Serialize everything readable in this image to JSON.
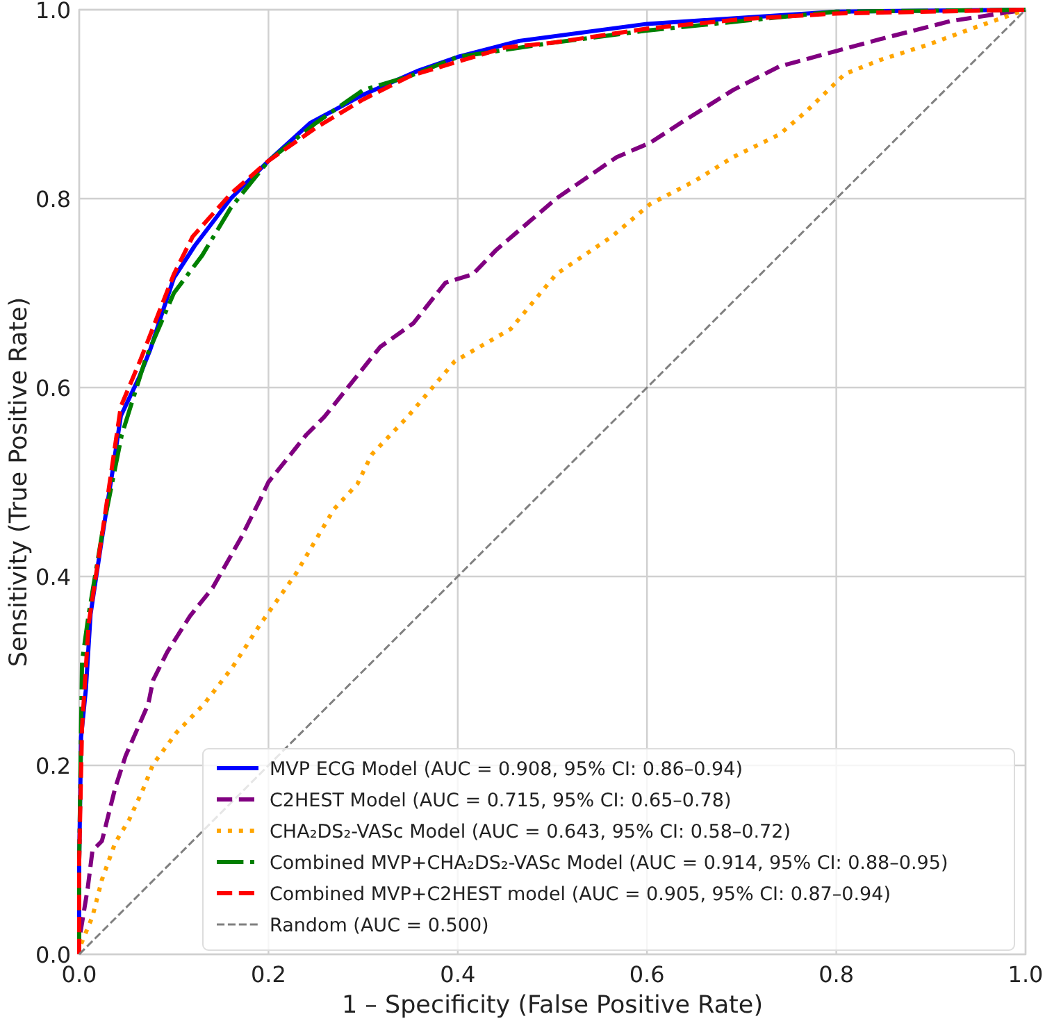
{
  "chart_data": {
    "type": "line",
    "xlabel": "1 – Specificity (False Positive Rate)",
    "ylabel": "Sensitivity (True Positive Rate)",
    "xlim": [
      0,
      1
    ],
    "ylim": [
      0,
      1
    ],
    "xticks": [
      {
        "value": 0,
        "label": "0.0"
      },
      0.2,
      0.4,
      0.6,
      0.8,
      {
        "value": 1,
        "label": "1.0"
      }
    ],
    "yticks": [
      {
        "value": 0,
        "label": "0.0"
      },
      0.2,
      0.4,
      0.6,
      0.8,
      {
        "value": 1,
        "label": "1.0"
      }
    ],
    "grid": true,
    "legend": "bottom right",
    "marker": "none",
    "series": [
      {
        "name": "MVP ECG Model (AUC = 0.908, 95% CI: 0.86–0.94)",
        "color": "#0000ff",
        "line_style": "solid",
        "x": [
          0,
          0,
          0.002,
          0.007,
          0.012,
          0.024,
          0.035,
          0.044,
          0.063,
          0.075,
          0.088,
          0.1,
          0.122,
          0.16,
          0.2,
          0.244,
          0.3,
          0.357,
          0.4,
          0.465,
          0.6,
          0.8,
          1
        ],
        "values": [
          0,
          0.1,
          0.23,
          0.28,
          0.36,
          0.44,
          0.51,
          0.57,
          0.61,
          0.64,
          0.68,
          0.716,
          0.75,
          0.8,
          0.84,
          0.88,
          0.91,
          0.935,
          0.95,
          0.967,
          0.985,
          0.998,
          1
        ]
      },
      {
        "name": "C2HEST Model (AUC = 0.715, 95% CI: 0.65–0.78)",
        "color": "#800080",
        "line_style": "dashed",
        "x": [
          0,
          0,
          0.009,
          0.014,
          0.024,
          0.038,
          0.049,
          0.073,
          0.078,
          0.093,
          0.117,
          0.141,
          0.171,
          0.191,
          0.2,
          0.24,
          0.259,
          0.279,
          0.318,
          0.353,
          0.387,
          0.416,
          0.441,
          0.504,
          0.568,
          0.603,
          0.637,
          0.691,
          0.74,
          0.799,
          0.847,
          0.921,
          1
        ],
        "values": [
          0,
          0.015,
          0.07,
          0.11,
          0.12,
          0.176,
          0.21,
          0.265,
          0.29,
          0.32,
          0.358,
          0.388,
          0.441,
          0.481,
          0.5,
          0.55,
          0.569,
          0.594,
          0.643,
          0.668,
          0.711,
          0.72,
          0.746,
          0.8,
          0.844,
          0.859,
          0.881,
          0.915,
          0.94,
          0.956,
          0.969,
          0.988,
          1
        ]
      },
      {
        "name": "CHA₂DS₂-VASc Model (AUC = 0.643, 95% CI: 0.58–0.72)",
        "color": "#ffa500",
        "line_style": "dotted",
        "x": [
          0,
          0,
          0.014,
          0.024,
          0.038,
          0.053,
          0.068,
          0.078,
          0.103,
          0.132,
          0.162,
          0.191,
          0.229,
          0.269,
          0.294,
          0.309,
          0.347,
          0.397,
          0.456,
          0.504,
          0.563,
          0.603,
          0.651,
          0.691,
          0.74,
          0.769,
          0.809,
          0.847,
          0.897,
          0.946,
          1
        ],
        "values": [
          0,
          0.006,
          0.04,
          0.079,
          0.118,
          0.143,
          0.176,
          0.201,
          0.235,
          0.265,
          0.304,
          0.349,
          0.403,
          0.471,
          0.498,
          0.529,
          0.569,
          0.628,
          0.662,
          0.72,
          0.76,
          0.794,
          0.819,
          0.844,
          0.868,
          0.893,
          0.932,
          0.947,
          0.963,
          0.981,
          1
        ]
      },
      {
        "name": "Combined MVP+CHA₂DS₂-VASc Model (AUC = 0.914, 95% CI: 0.88–0.95)",
        "color": "#008000",
        "line_style": "dashdot",
        "x": [
          0,
          0,
          0.003,
          0.01,
          0.025,
          0.045,
          0.07,
          0.1,
          0.13,
          0.16,
          0.2,
          0.25,
          0.3,
          0.35,
          0.4,
          0.5,
          0.6,
          0.7,
          0.8,
          1
        ],
        "values": [
          0,
          0.1,
          0.31,
          0.36,
          0.45,
          0.55,
          0.63,
          0.7,
          0.74,
          0.79,
          0.84,
          0.88,
          0.915,
          0.93,
          0.95,
          0.965,
          0.978,
          0.988,
          0.998,
          1
        ]
      },
      {
        "name": "Combined MVP+C2HEST model (AUC = 0.905, 95% CI: 0.87–0.94)",
        "color": "#ff0000",
        "line_style": "dashed",
        "x": [
          0,
          0,
          0.003,
          0.01,
          0.025,
          0.044,
          0.065,
          0.1,
          0.12,
          0.16,
          0.2,
          0.25,
          0.3,
          0.35,
          0.4,
          0.45,
          0.5,
          0.6,
          0.7,
          0.8,
          1
        ],
        "values": [
          0,
          0.1,
          0.24,
          0.35,
          0.45,
          0.58,
          0.63,
          0.72,
          0.76,
          0.805,
          0.84,
          0.875,
          0.905,
          0.93,
          0.945,
          0.96,
          0.965,
          0.98,
          0.99,
          0.996,
          1
        ]
      },
      {
        "name": "Random (AUC = 0.500)",
        "color": "#808080",
        "line_style": "dashed",
        "x": [
          0,
          1
        ],
        "values": [
          0,
          1
        ]
      }
    ]
  }
}
